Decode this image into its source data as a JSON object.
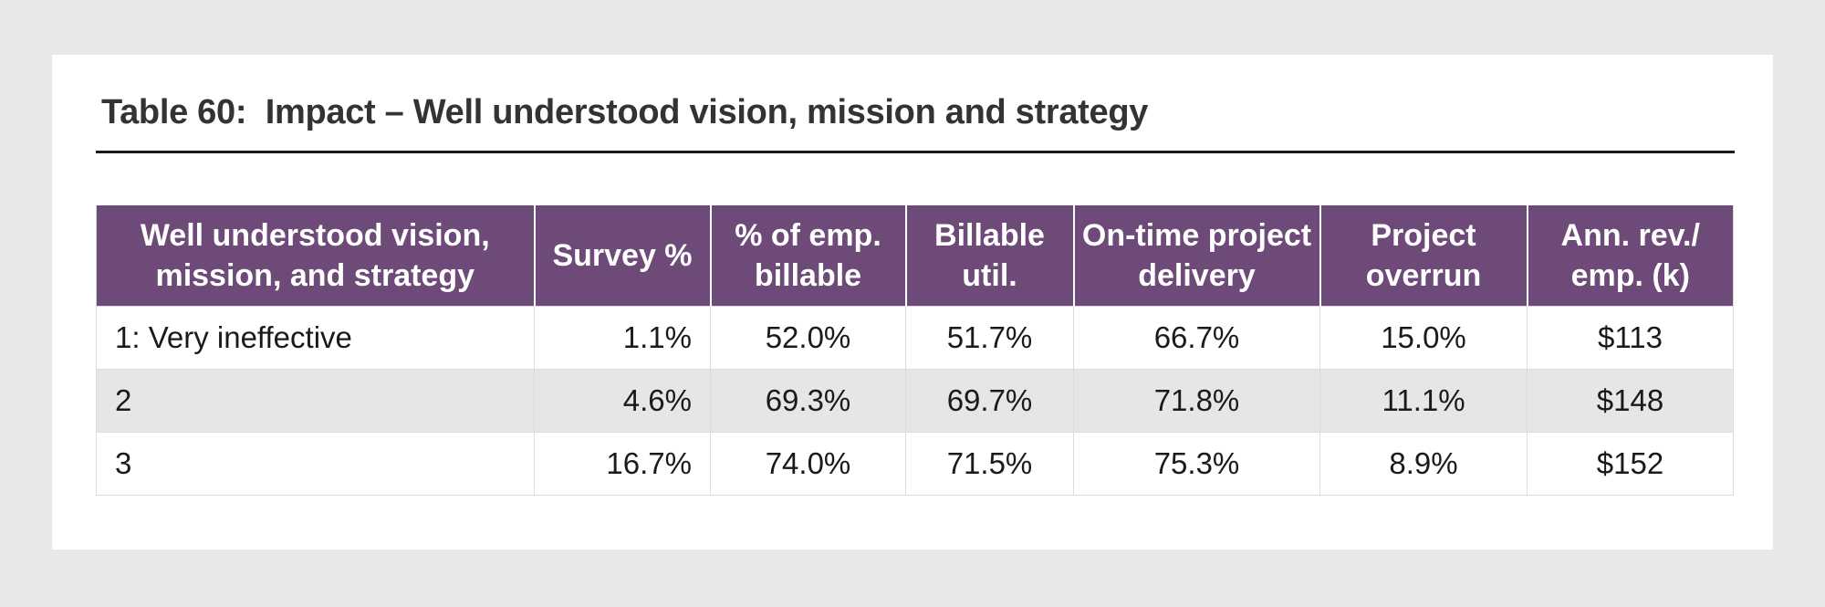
{
  "table": {
    "title": "Table 60:  Impact – Well understood vision, mission and strategy",
    "headers": [
      "Well understood vision, mission, and strategy",
      "Survey %",
      "% of emp. billable",
      "Billable util.",
      "On-time project delivery",
      "Project overrun",
      "Ann. rev./ emp. (k)"
    ],
    "rows": [
      [
        "1: Very ineffective",
        "1.1%",
        "52.0%",
        "51.7%",
        "66.7%",
        "15.0%",
        "$113"
      ],
      [
        "2",
        "4.6%",
        "69.3%",
        "69.7%",
        "71.8%",
        "11.1%",
        "$148"
      ],
      [
        "3",
        "16.7%",
        "74.0%",
        "71.5%",
        "75.3%",
        "8.9%",
        "$152"
      ]
    ],
    "colors": {
      "header_bg": "#6d4a78",
      "header_text": "#ffffff",
      "stripe_bg": "#e6e6e6",
      "page_bg": "#e7e8ea"
    }
  }
}
